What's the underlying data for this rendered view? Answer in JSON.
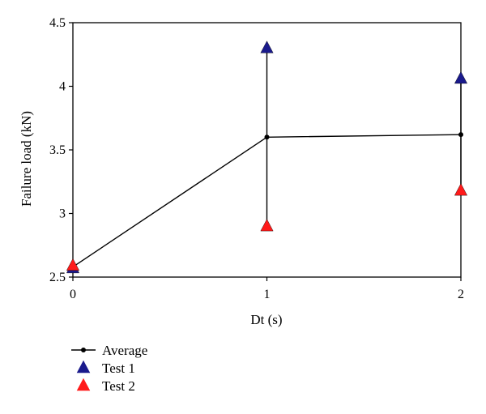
{
  "chart_data": {
    "type": "line",
    "title": "",
    "xlabel": "Dt (s)",
    "ylabel": "Failure load (kN)",
    "x": [
      0,
      1,
      2
    ],
    "xlim": [
      0,
      2
    ],
    "ylim": [
      2.5,
      4.5
    ],
    "x_ticks": [
      "0",
      "1",
      "2"
    ],
    "y_ticks": [
      "2.5",
      "3",
      "3.5",
      "4",
      "4.5"
    ],
    "grid": false,
    "legend_placement": "bottom-left",
    "series": [
      {
        "name": "Average",
        "values": [
          2.58,
          3.6,
          3.62
        ],
        "style": "line-marker",
        "marker": "circle",
        "color": "#000000"
      },
      {
        "name": "Test 1",
        "values": [
          2.57,
          4.3,
          4.06
        ],
        "style": "marker",
        "marker": "triangle",
        "color": "#1a1a8c"
      },
      {
        "name": "Test 2",
        "values": [
          2.59,
          2.9,
          3.18
        ],
        "style": "marker",
        "marker": "triangle",
        "color": "#ff1a1a"
      }
    ],
    "range_lines": true
  }
}
